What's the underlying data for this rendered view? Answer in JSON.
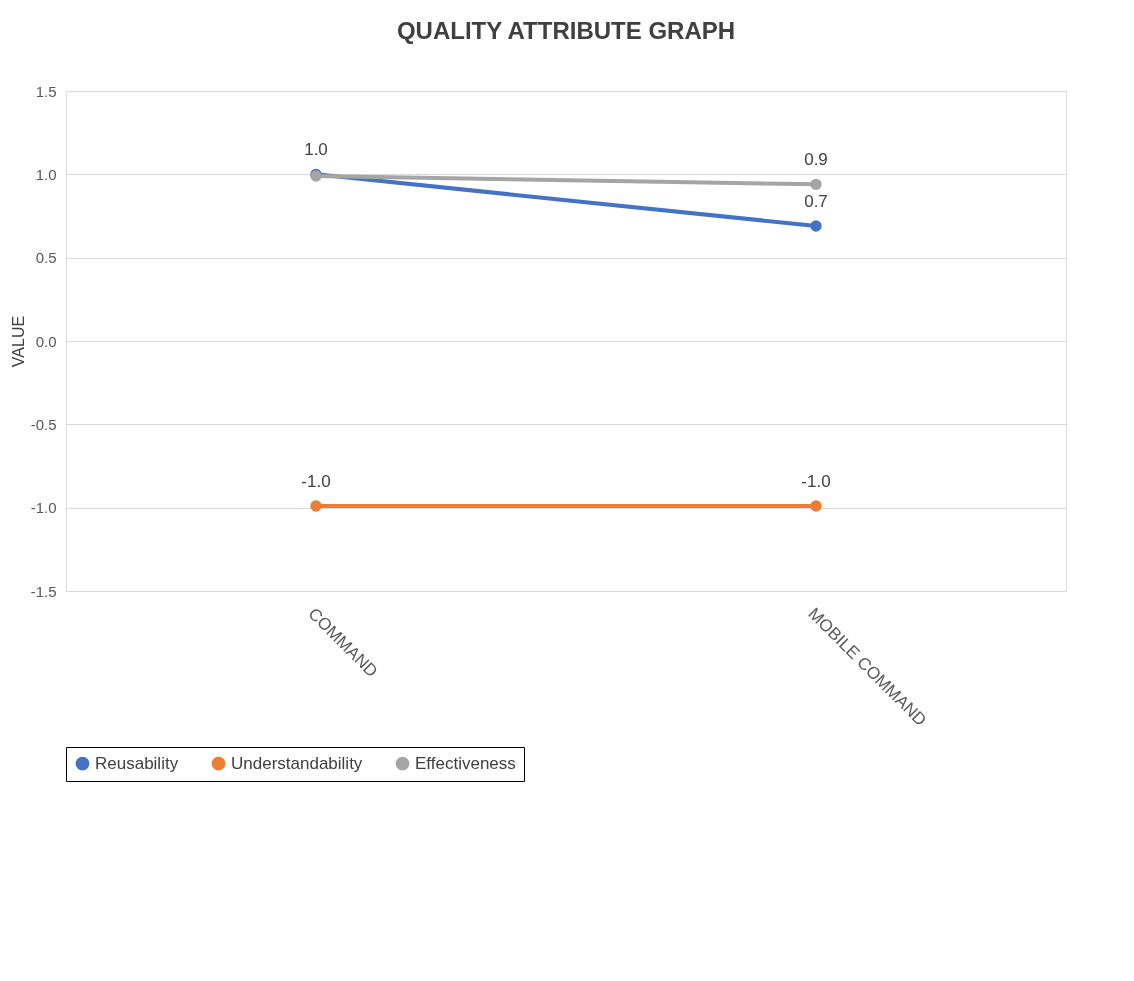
{
  "chart_data": {
    "type": "line",
    "title": "QUALITY ATTRIBUTE GRAPH",
    "ylabel": "VALUE",
    "categories": [
      "COMMAND",
      "MOBILE COMMAND"
    ],
    "series": [
      {
        "name": "Reusability",
        "color": "#4472c4",
        "values": [
          1.0,
          0.69
        ],
        "value_labels": [
          "1.0",
          "0.7"
        ]
      },
      {
        "name": "Understandability",
        "color": "#ed7d31",
        "values": [
          -0.99,
          -0.99
        ],
        "value_labels": [
          "-1.0",
          "-1.0"
        ]
      },
      {
        "name": "Effectiveness",
        "color": "#a5a5a5",
        "values": [
          0.99,
          0.94
        ],
        "value_labels": [
          null,
          "0.9"
        ]
      }
    ],
    "ylim": [
      -1.5,
      1.5
    ],
    "yticks": [
      {
        "value": -1.5,
        "label": "-1.5"
      },
      {
        "value": -1.0,
        "label": "-1.0"
      },
      {
        "value": -0.5,
        "label": "-0.5"
      },
      {
        "value": 0,
        "label": "0.0"
      },
      {
        "value": 0.5,
        "label": "0.5"
      },
      {
        "value": 1.0,
        "label": "1.0"
      },
      {
        "value": 1.5,
        "label": "1.5"
      }
    ],
    "grid": "y",
    "legend": "bottom",
    "marker": "circle",
    "line_style": "solid"
  }
}
